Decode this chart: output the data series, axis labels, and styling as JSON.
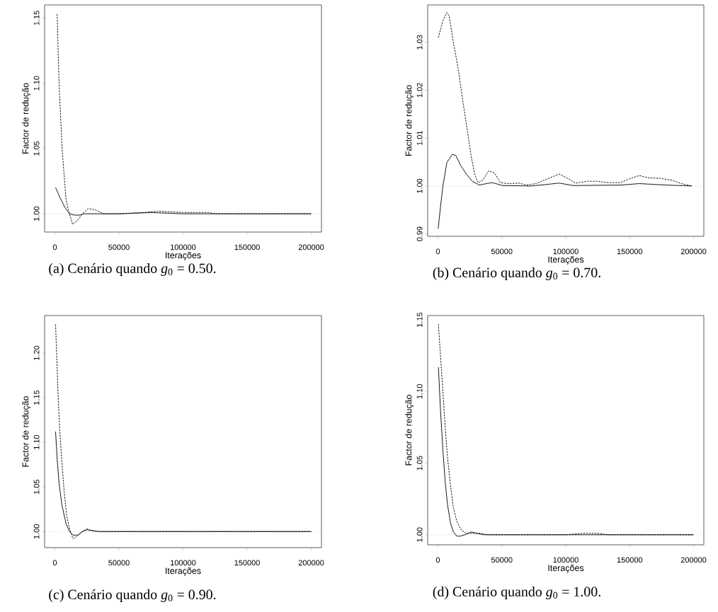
{
  "chart_data": [
    {
      "type": "line",
      "title": "(a) Cenário quando *g*$_{0}$ = 0.50.",
      "xlabel": "Iterações",
      "ylabel": "Factor de redução",
      "xlim": [
        -8000,
        208000
      ],
      "ylim": [
        0.986,
        1.16
      ],
      "xticks": [
        0,
        50000,
        100000,
        150000,
        200000
      ],
      "yticks": [
        {
          "value": 1.0,
          "label": "1.00"
        },
        {
          "value": 1.05,
          "label": "1.05"
        },
        {
          "value": 1.1,
          "label": "1.10"
        },
        {
          "value": 1.15,
          "label": "1.15"
        }
      ],
      "ref_lines": [
        {
          "axis": "y",
          "value": 1.0,
          "color": "#999999",
          "line_style": "dotted"
        }
      ],
      "series": [
        {
          "color": "#000000",
          "line_style": "solid",
          "x": [
            550,
            4200,
            7800,
            11500,
            15100,
            19600,
            23000,
            30500,
            50000,
            75000,
            100000,
            150000,
            200000
          ],
          "values": [
            1.02,
            1.012,
            1.005,
            1.0,
            0.999,
            0.999,
            1.0,
            1.0,
            1.0,
            1.001,
            1.0,
            1.0,
            1.0
          ]
        },
        {
          "color": "#000000",
          "line_style": "dashed",
          "x": [
            1800,
            3270,
            5640,
            8700,
            10500,
            13800,
            17800,
            21500,
            26000,
            31500,
            37800,
            50000,
            70000,
            80000,
            100000,
            120000,
            125000,
            150000,
            200000
          ],
          "values": [
            1.153,
            1.1,
            1.05,
            1.011,
            1.003,
            0.992,
            0.995,
            1.0,
            1.004,
            1.003,
            1.0,
            1.0,
            1.001,
            1.002,
            1.001,
            1.001,
            1.0,
            1.0,
            1.0
          ]
        }
      ]
    },
    {
      "type": "line",
      "title": "(b) Cenário quando *g*$_{0}$ = 0.70.",
      "xlabel": "Iterações",
      "ylabel": "Factor de redução",
      "xlim": [
        -8000,
        208000
      ],
      "ylim": [
        0.9895,
        1.0378
      ],
      "xticks": [
        0,
        50000,
        100000,
        150000,
        200000
      ],
      "yticks": [
        {
          "value": 0.99,
          "label": "0.99"
        },
        {
          "value": 1.0,
          "label": "1.00"
        },
        {
          "value": 1.01,
          "label": "1.01"
        },
        {
          "value": 1.02,
          "label": "1.02"
        },
        {
          "value": 1.03,
          "label": "1.03"
        }
      ],
      "ref_lines": [
        {
          "axis": "y",
          "value": 1.0,
          "color": "#999999",
          "line_style": "dotted"
        }
      ],
      "series": [
        {
          "color": "#000000",
          "line_style": "solid",
          "x": [
            200,
            2000,
            3900,
            7000,
            11200,
            14000,
            17600,
            22200,
            26800,
            32400,
            37900,
            42500,
            50700,
            72800,
            94900,
            105900,
            142600,
            157400,
            179400,
            198700
          ],
          "values": [
            0.9911,
            0.9956,
            1.0,
            1.0049,
            1.0066,
            1.0064,
            1.0044,
            1.0025,
            1.001,
            1.0002,
            1.0005,
            1.0007,
            1.0001,
            1.0,
            1.0006,
            1.0001,
            1.0002,
            1.0005,
            1.0002,
            1.0
          ]
        },
        {
          "color": "#000000",
          "line_style": "dashed",
          "x": [
            400,
            3900,
            7000,
            8800,
            12100,
            15800,
            19500,
            23200,
            25900,
            28700,
            31400,
            35100,
            39700,
            44300,
            48900,
            54400,
            63600,
            69100,
            76500,
            85700,
            94900,
            102200,
            107700,
            116900,
            124300,
            133500,
            142600,
            150000,
            157400,
            164700,
            173900,
            183100,
            190400,
            198700
          ],
          "values": [
            1.031,
            1.0345,
            1.0362,
            1.0355,
            1.03,
            1.0246,
            1.0177,
            1.0113,
            1.0064,
            1.0025,
            1.0007,
            1.0012,
            1.0032,
            1.0027,
            1.0007,
            1.0005,
            1.0006,
            1.0002,
            1.0005,
            1.0015,
            1.0025,
            1.0015,
            1.0006,
            1.001,
            1.001,
            1.0007,
            1.0007,
            1.0015,
            1.0022,
            1.0017,
            1.0016,
            1.0012,
            1.0005,
            1.0
          ]
        }
      ]
    },
    {
      "type": "line",
      "title": "(c) Cenário quando *g*$_{0}$ = 0.90.",
      "xlabel": "Iterações",
      "ylabel": "Factor de redução",
      "xlim": [
        -8000,
        208000
      ],
      "ylim": [
        0.982,
        1.242
      ],
      "xticks": [
        0,
        50000,
        100000,
        150000,
        200000
      ],
      "yticks": [
        {
          "value": 1.0,
          "label": "1.00"
        },
        {
          "value": 1.05,
          "label": "1.05"
        },
        {
          "value": 1.1,
          "label": "1.10"
        },
        {
          "value": 1.15,
          "label": "1.15"
        },
        {
          "value": 1.2,
          "label": "1.20"
        }
      ],
      "ref_lines": [
        {
          "axis": "y",
          "value": 1.0,
          "color": "#999999",
          "line_style": "dotted"
        }
      ],
      "series": [
        {
          "color": "#000000",
          "line_style": "solid",
          "x": [
            550,
            1800,
            3300,
            5450,
            8700,
            11500,
            14200,
            17800,
            21500,
            25100,
            29600,
            34200,
            41500,
            100000,
            200000
          ],
          "values": [
            1.112,
            1.081,
            1.054,
            1.03,
            1.009,
            1.0,
            0.996,
            0.996,
            1.0,
            1.002,
            1.001,
            1.0,
            1.0,
            1.0,
            1.0
          ]
        },
        {
          "color": "#000000",
          "line_style": "dashed",
          "x": [
            550,
            1450,
            2400,
            3600,
            5450,
            7300,
            9300,
            11500,
            14200,
            17800,
            21500,
            25100,
            28700,
            34200,
            100000,
            150000,
            200000
          ],
          "values": [
            1.232,
            1.197,
            1.157,
            1.118,
            1.078,
            1.044,
            1.017,
            1.003,
            0.992,
            0.995,
            1.0,
            1.003,
            1.001,
            1.0,
            1.0,
            1.0,
            1.0
          ]
        }
      ]
    },
    {
      "type": "line",
      "title": "(d) Cenário quando *g*$_{0}$ = 1.00.",
      "xlabel": "Iterações",
      "ylabel": "Factor de redução",
      "xlim": [
        -8000,
        208000
      ],
      "ylim": [
        0.993,
        1.153
      ],
      "xticks": [
        0,
        50000,
        100000,
        150000,
        200000
      ],
      "yticks": [
        {
          "value": 1.0,
          "label": "1.00"
        },
        {
          "value": 1.05,
          "label": "1.05"
        },
        {
          "value": 1.1,
          "label": "1.10"
        },
        {
          "value": 1.15,
          "label": "1.15"
        }
      ],
      "ref_lines": [
        {
          "axis": "y",
          "value": 1.0,
          "color": "#999999",
          "line_style": "dotted"
        }
      ],
      "series": [
        {
          "color": "#000000",
          "line_style": "solid",
          "x": [
            400,
            2000,
            3900,
            5700,
            7500,
            9900,
            12100,
            14900,
            17300,
            21300,
            25900,
            30500,
            36000,
            100000,
            200000
          ],
          "values": [
            1.117,
            1.087,
            1.059,
            1.037,
            1.021,
            1.008,
            1.002,
            0.999,
            0.999,
            1.0,
            1.002,
            1.001,
            1.0,
            1.0,
            1.0
          ]
        },
        {
          "color": "#000000",
          "line_style": "dashed",
          "x": [
            400,
            2000,
            3900,
            5700,
            7500,
            9900,
            12100,
            14900,
            18600,
            22200,
            26800,
            32400,
            39700,
            100000,
            113200,
            124300,
            133500,
            200000
          ],
          "values": [
            1.147,
            1.125,
            1.1,
            1.075,
            1.054,
            1.034,
            1.019,
            1.009,
            1.003,
            1.001,
            1.001,
            1.001,
            1.0,
            1.0,
            1.001,
            1.001,
            1.0,
            1.0
          ]
        }
      ]
    }
  ]
}
